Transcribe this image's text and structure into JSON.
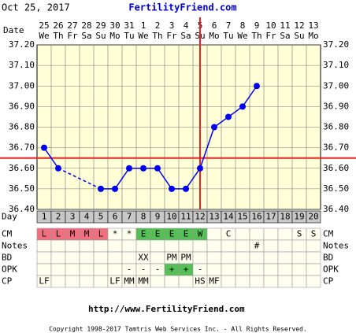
{
  "chart_data": {
    "type": "line",
    "date_header": "Oct 25, 2017",
    "title": "FertilityFriend.com",
    "date_label": "Date",
    "dates": [
      "25",
      "26",
      "27",
      "28",
      "29",
      "30",
      "31",
      "1",
      "2",
      "3",
      "4",
      "5",
      "6",
      "7",
      "8",
      "9",
      "10",
      "11",
      "12",
      "13"
    ],
    "weekdays": [
      "We",
      "Th",
      "Fr",
      "Sa",
      "Su",
      "Mo",
      "Tu",
      "We",
      "Th",
      "Fr",
      "Sa",
      "Su",
      "Mo",
      "Tu",
      "We",
      "Th",
      "Fr",
      "Sa",
      "Su",
      "Mo"
    ],
    "day_label": "Day",
    "cycle_days": [
      1,
      2,
      3,
      4,
      5,
      6,
      7,
      8,
      9,
      10,
      11,
      12,
      13,
      14,
      15,
      16,
      17,
      18,
      19,
      20
    ],
    "series": [
      {
        "color": "#0000ee",
        "values": [
          36.7,
          36.6,
          null,
          null,
          36.5,
          36.5,
          36.6,
          36.6,
          36.6,
          36.5,
          36.5,
          36.6,
          36.8,
          36.85,
          36.9,
          37.0,
          null,
          null,
          null,
          null
        ]
      }
    ],
    "ylim": [
      36.4,
      37.2
    ],
    "yticks": [
      {
        "value": 36.4,
        "label": "36.40"
      },
      {
        "value": 36.5,
        "label": "36.50"
      },
      {
        "value": 36.6,
        "label": "36.60"
      },
      {
        "value": 36.7,
        "label": "36.70"
      },
      {
        "value": 36.8,
        "label": "36.80"
      },
      {
        "value": 36.9,
        "label": "36.90"
      },
      {
        "value": 37.0,
        "label": "37.00"
      },
      {
        "value": 37.1,
        "label": "37.10"
      },
      {
        "value": 37.2,
        "label": "37.20"
      }
    ],
    "coverline": 36.65,
    "ovulation_cycle_day": 12,
    "line_color": "#ee2222",
    "grid": true,
    "rows": [
      {
        "label": "CM",
        "cells": [
          "L",
          "L",
          "M",
          "M",
          "L",
          "*",
          "*",
          "E",
          "E",
          "E",
          "E",
          "W",
          null,
          "C",
          null,
          null,
          null,
          null,
          "S",
          "S"
        ]
      },
      {
        "label": "Notes",
        "cells": [
          null,
          null,
          null,
          null,
          null,
          null,
          null,
          null,
          null,
          null,
          null,
          null,
          null,
          null,
          null,
          "#",
          null,
          null,
          null,
          null
        ]
      },
      {
        "label": "BD",
        "cells": [
          null,
          null,
          null,
          null,
          null,
          null,
          null,
          "XX",
          null,
          "PM",
          "PM",
          null,
          null,
          null,
          null,
          null,
          null,
          null,
          null,
          null
        ]
      },
      {
        "label": "OPK",
        "cells": [
          null,
          null,
          null,
          null,
          null,
          null,
          "-",
          "-",
          "-",
          "+",
          "+",
          "-",
          null,
          null,
          null,
          null,
          null,
          null,
          null,
          null
        ]
      },
      {
        "label": "CP",
        "cells": [
          "LF",
          null,
          null,
          null,
          null,
          "LF",
          "MM",
          "MM",
          null,
          null,
          null,
          "HS",
          "MF",
          null,
          null,
          null,
          null,
          null,
          null,
          null
        ]
      }
    ],
    "cell_colors": {
      "L": "#f07080",
      "M": "#f07080",
      "E": "#55c055",
      "W": "#55c055",
      "+": "#55c055"
    },
    "footer_url": "http://www.FertilityFriend.com",
    "copyright": "Copyright 1998-2017 Tamtris Web Services Inc. - All Rights Reserved."
  }
}
